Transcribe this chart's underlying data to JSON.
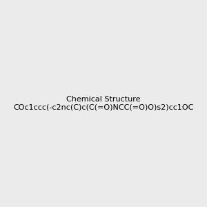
{
  "smiles": "COc1ccc(-c2nc(C)c(C(=O)NCC(=O)O)s2)cc1OC",
  "title": "",
  "bg_color": "#ebebeb",
  "figsize": [
    3.0,
    3.0
  ],
  "dpi": 100,
  "img_size": [
    300,
    300
  ],
  "atom_colors": {
    "O": "#ff0000",
    "N": "#0000ff",
    "S": "#cccc00",
    "C": "#000000",
    "H": "#000000"
  },
  "bond_color": "#000000",
  "bond_width": 1.5,
  "font_size": 14
}
